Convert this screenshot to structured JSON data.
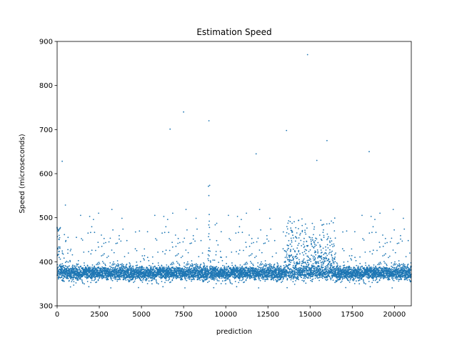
{
  "chart_data": {
    "type": "scatter",
    "title": "Estimation Speed",
    "xlabel": "prediction",
    "ylabel": "Speed (microseconds)",
    "xlim": [
      0,
      21000
    ],
    "ylim": [
      300,
      900
    ],
    "x_ticks": [
      0,
      2500,
      5000,
      7500,
      10000,
      12500,
      15000,
      17500,
      20000
    ],
    "y_ticks": [
      300,
      400,
      500,
      600,
      700,
      800,
      900
    ],
    "marker_color": "#1f77b4",
    "grid": false,
    "series": [
      {
        "n_points": 21000,
        "baseline_band": [
          340,
          410
        ],
        "typical_center": 375,
        "notable_points": [
          {
            "x": 300,
            "y": 628
          },
          {
            "x": 6700,
            "y": 701
          },
          {
            "x": 7500,
            "y": 740
          },
          {
            "x": 9000,
            "y": 720
          },
          {
            "x": 11800,
            "y": 645
          },
          {
            "x": 13600,
            "y": 698
          },
          {
            "x": 14850,
            "y": 870
          },
          {
            "x": 15400,
            "y": 630
          },
          {
            "x": 16000,
            "y": 675
          },
          {
            "x": 18500,
            "y": 650
          }
        ]
      }
    ]
  }
}
